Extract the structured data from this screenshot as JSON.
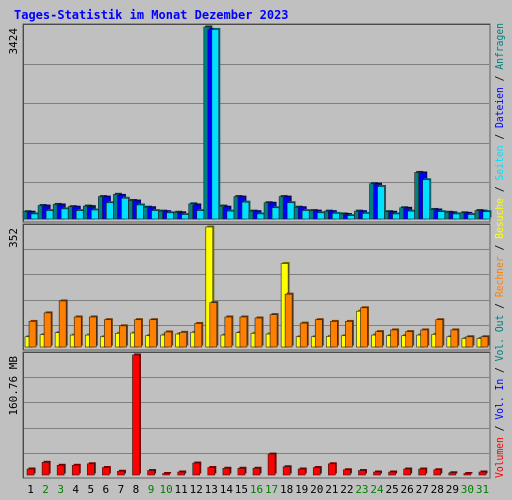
{
  "chart_data": {
    "type": "bar",
    "title": "Tages-Statistik im Monat Dezember 2023",
    "categories": [
      "1",
      "2",
      "3",
      "4",
      "5",
      "6",
      "7",
      "8",
      "9",
      "10",
      "11",
      "12",
      "13",
      "14",
      "15",
      "16",
      "17",
      "18",
      "19",
      "20",
      "21",
      "22",
      "23",
      "24",
      "25",
      "26",
      "27",
      "28",
      "29",
      "30",
      "31"
    ],
    "weekend_days": [
      "2",
      "3",
      "9",
      "10",
      "16",
      "17",
      "23",
      "24",
      "30",
      "31"
    ],
    "grid": true,
    "panels": [
      {
        "id": "hits",
        "ymax_label": "3424",
        "ymax": 3424,
        "series": [
          {
            "name": "Anfragen",
            "color": "#008080",
            "values": [
              130,
              240,
              260,
              220,
              230,
              400,
              440,
              330,
              210,
              140,
              120,
              270,
              3424,
              230,
              400,
              140,
              290,
              400,
              210,
              150,
              140,
              90,
              140,
              630,
              130,
              200,
              830,
              170,
              120,
              110,
              150
            ]
          },
          {
            "name": "Dateien",
            "color": "#0000ff",
            "values": [
              120,
              230,
              250,
              210,
              220,
              390,
              420,
              320,
              200,
              130,
              110,
              250,
              3380,
              210,
              390,
              130,
              280,
              390,
              200,
              140,
              130,
              80,
              130,
              620,
              120,
              190,
              820,
              160,
              110,
              100,
              140
            ]
          },
          {
            "name": "Seiten",
            "color": "#00e0ff",
            "values": [
              90,
              150,
              180,
              150,
              160,
              290,
              370,
              250,
              150,
              110,
              80,
              150,
              3380,
              140,
              300,
              90,
              200,
              290,
              150,
              110,
              100,
              60,
              100,
              580,
              90,
              140,
              700,
              130,
              90,
              80,
              130
            ]
          }
        ]
      },
      {
        "id": "visits",
        "ymax_label": "352",
        "ymax": 352,
        "series": [
          {
            "name": "Besuche",
            "color": "#ffff00",
            "values": [
              30,
              36,
              42,
              35,
              35,
              30,
              40,
              41,
              33,
              35,
              38,
              43,
              352,
              35,
              42,
              40,
              38,
              245,
              30,
              30,
              31,
              33,
              105,
              35,
              33,
              33,
              35,
              37,
              30,
              25,
              25
            ]
          },
          {
            "name": "Rechner",
            "color": "#ff8000",
            "values": [
              75,
              100,
              135,
              88,
              88,
              80,
              62,
              80,
              80,
              44,
              43,
              69,
              130,
              88,
              88,
              85,
              95,
              155,
              70,
              80,
              75,
              75,
              115,
              45,
              50,
              45,
              50,
              80,
              50,
              30,
              30
            ]
          }
        ]
      },
      {
        "id": "volume",
        "ymax_label": "160.76 MB",
        "ymax": 160.76,
        "series": [
          {
            "name": "Volumen",
            "color": "#ff0000",
            "values": [
              8,
              17,
              13,
              13,
              15,
              10,
              5,
              160.76,
              6,
              2,
              4,
              16,
              10,
              9,
              9,
              9,
              28,
              11,
              8,
              10,
              15,
              7,
              6,
              4,
              4,
              8,
              8,
              7,
              3,
              2,
              4
            ]
          }
        ]
      }
    ],
    "right_legend": [
      {
        "text": "Volumen",
        "color": "#ff0000"
      },
      {
        "text": " / ",
        "color": "#000000"
      },
      {
        "text": "Vol. In",
        "color": "#0000ff"
      },
      {
        "text": " / ",
        "color": "#000000"
      },
      {
        "text": "Vol. Out",
        "color": "#008080"
      },
      {
        "text": " / ",
        "color": "#000000"
      },
      {
        "text": "Rechner",
        "color": "#ff8000"
      },
      {
        "text": " / ",
        "color": "#000000"
      },
      {
        "text": "Besuche",
        "color": "#ffff00"
      },
      {
        "text": " / ",
        "color": "#000000"
      },
      {
        "text": "Seiten",
        "color": "#00e0ff"
      },
      {
        "text": " / ",
        "color": "#000000"
      },
      {
        "text": "Dateien",
        "color": "#0000ff"
      },
      {
        "text": " / ",
        "color": "#000000"
      },
      {
        "text": "Anfragen",
        "color": "#008080"
      }
    ],
    "colors": {
      "background": "#c0c0c0",
      "title": "#0000ff",
      "weekday_label": "#000000",
      "weekend_label": "#008000"
    }
  }
}
